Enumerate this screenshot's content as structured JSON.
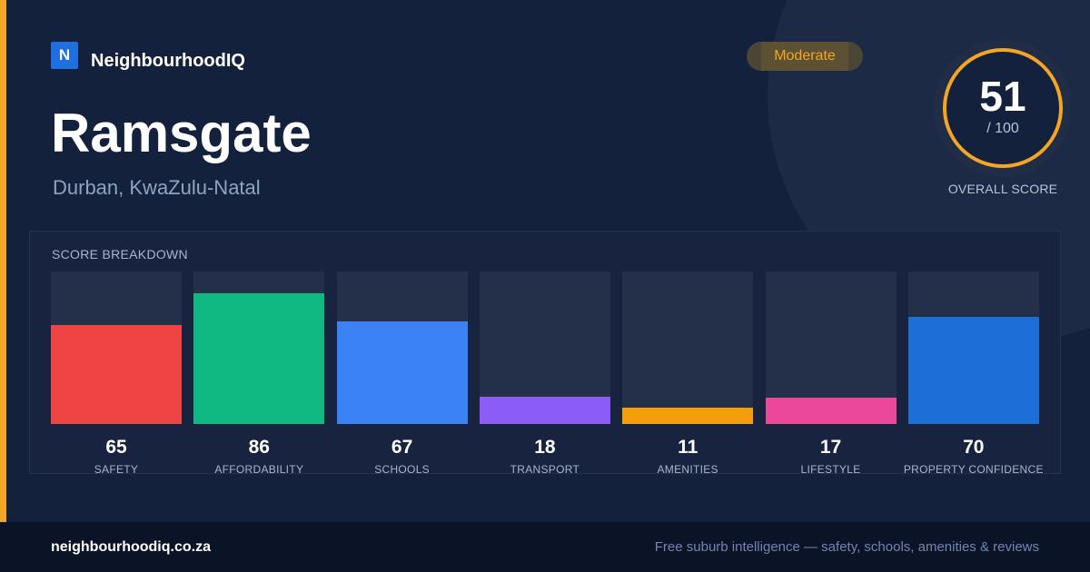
{
  "brand": {
    "logo_letter": "N",
    "name": "NeighbourhoodIQ"
  },
  "suburb": {
    "name": "Ramsgate",
    "location": "Durban, KwaZulu-Natal"
  },
  "rating_badge": "Moderate",
  "overall": {
    "score": "51",
    "max": "/ 100",
    "label": "OVERALL SCORE"
  },
  "breakdown": {
    "title": "SCORE BREAKDOWN",
    "categories": [
      {
        "label": "SAFETY",
        "value": 65,
        "color": "#ef4444"
      },
      {
        "label": "AFFORDABILITY",
        "value": 86,
        "color": "#10b981"
      },
      {
        "label": "SCHOOLS",
        "value": 67,
        "color": "#3b82f6"
      },
      {
        "label": "TRANSPORT",
        "value": 18,
        "color": "#8b5cf6"
      },
      {
        "label": "AMENITIES",
        "value": 11,
        "color": "#f59e0b"
      },
      {
        "label": "LIFESTYLE",
        "value": 17,
        "color": "#ec4899"
      },
      {
        "label": "PROPERTY CONFIDENCE",
        "value": 70,
        "color": "#1d6fd8"
      }
    ]
  },
  "footer": {
    "domain": "neighbourhoodiq.co.za",
    "tagline": "Free suburb intelligence — safety, schools, amenities & reviews"
  },
  "colors": {
    "accent": "#f5a524",
    "brand_blue": "#1f6fe0",
    "background": "#14213d",
    "footer": "#0b1426"
  }
}
